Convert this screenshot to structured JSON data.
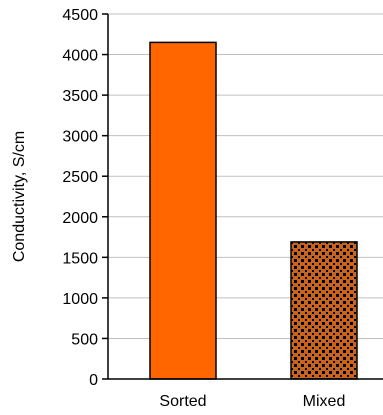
{
  "chart_data": {
    "type": "bar",
    "title": "",
    "xlabel": "",
    "ylabel": "Conductivity, S/cm",
    "ylim": [
      0,
      4500
    ],
    "yticks": [
      0,
      500,
      1000,
      1500,
      2000,
      2500,
      3000,
      3500,
      4000,
      4500
    ],
    "grid": true,
    "legend": "none",
    "categories": [
      "Sorted",
      "Mixed"
    ],
    "values": [
      4150,
      1690
    ],
    "colors": {
      "sorted_fill": "#ff6600",
      "mixed_fill": "#c8641e",
      "mixed_pattern_dots": "#000000",
      "grid": "#c0c0c0",
      "axis": "#000000"
    }
  }
}
